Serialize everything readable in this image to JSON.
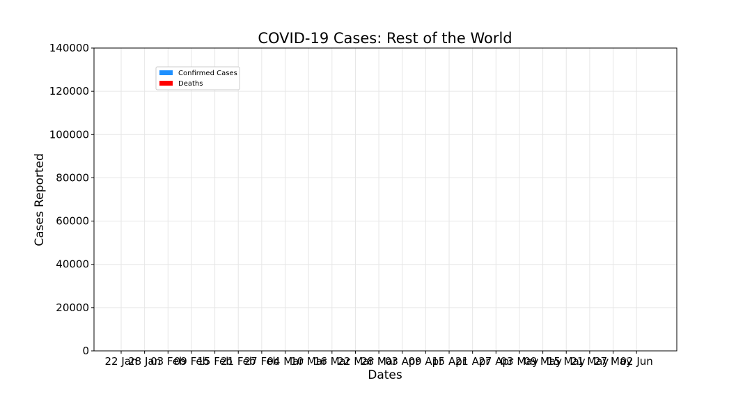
{
  "chart_data": {
    "type": "bar",
    "title": "COVID-19 Cases: Rest of the World",
    "xlabel": "Dates",
    "ylabel": "Cases Reported",
    "ylim": [
      0,
      140000
    ],
    "yticks": [
      0,
      20000,
      40000,
      60000,
      80000,
      100000,
      120000,
      140000
    ],
    "xtick_labels": [
      "22 Jan",
      "28 Jan",
      "03 Feb",
      "09 Feb",
      "15 Feb",
      "21 Feb",
      "27 Feb",
      "04 Mar",
      "10 Mar",
      "16 Mar",
      "22 Mar",
      "28 Mar",
      "03 Apr",
      "09 Apr",
      "15 Apr",
      "21 Apr",
      "27 Apr",
      "03 May",
      "09 May",
      "15 May",
      "21 May",
      "27 May",
      "02 Jun"
    ],
    "grid": true,
    "legend_position": "upper-left",
    "colors": {
      "confirmed": "#1e90ff",
      "deaths": "#ff0000"
    },
    "series": [
      {
        "name": "Confirmed Cases",
        "values": [
          0,
          0,
          0,
          0,
          0,
          0,
          0,
          0,
          0,
          0,
          0,
          0,
          0,
          0,
          0,
          0,
          0,
          0,
          0,
          0,
          0,
          0,
          0,
          0,
          0,
          0,
          0,
          0,
          0,
          0,
          0,
          0,
          0,
          0,
          0,
          0,
          0,
          0,
          0,
          0,
          0,
          0,
          0,
          0,
          0,
          0,
          0,
          0,
          0,
          0,
          0,
          0,
          0,
          0,
          0,
          0,
          0,
          0,
          0,
          0,
          0,
          0,
          0,
          0,
          0,
          0,
          0,
          0,
          0,
          0,
          0,
          0,
          0,
          0,
          0,
          0,
          0,
          0,
          0,
          0,
          0,
          0,
          0,
          0,
          0,
          0,
          0,
          0,
          0,
          0,
          0,
          0,
          0,
          0,
          0,
          0,
          0,
          0,
          0,
          0,
          0,
          0,
          0,
          0,
          0,
          0,
          0,
          0,
          0,
          0,
          0,
          0,
          0,
          0,
          0,
          0,
          0,
          0,
          0,
          0,
          0,
          0,
          0,
          0,
          0,
          0,
          0,
          0,
          0,
          0,
          0,
          0,
          0,
          0,
          0,
          0
        ]
      },
      {
        "name": "Deaths",
        "values": []
      }
    ],
    "start_label": "22 Jan"
  }
}
